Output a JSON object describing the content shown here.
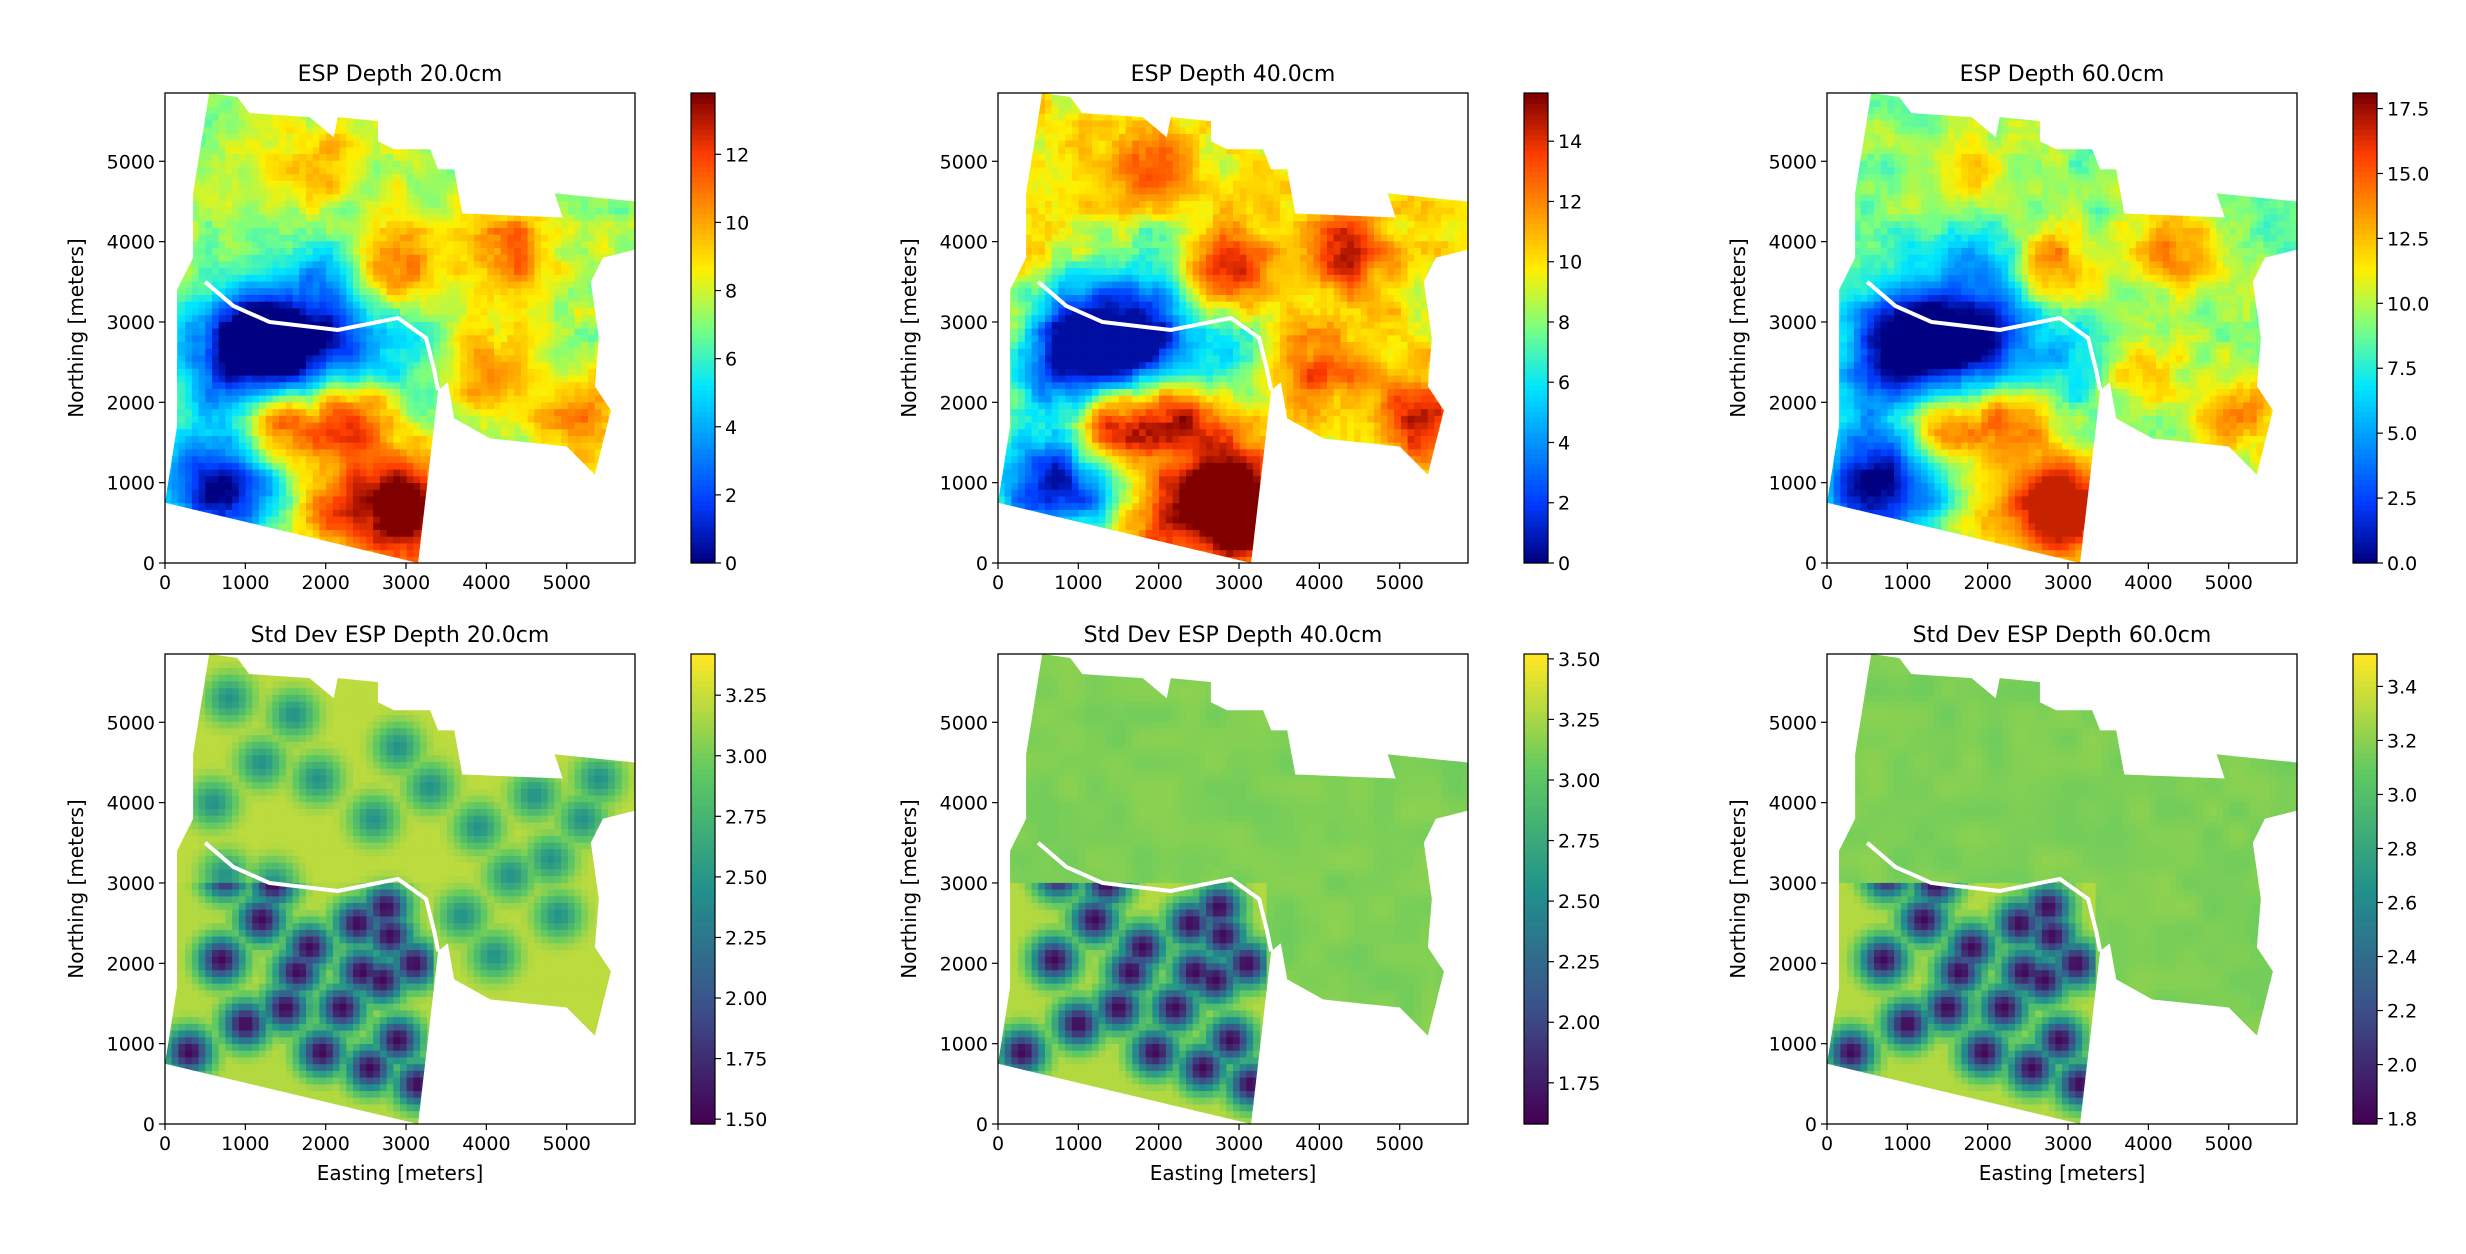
{
  "figure": {
    "layout": "2x3 grid of heatmaps with colorbars",
    "colormaps": {
      "jet": "jet",
      "viridis": "viridis"
    }
  },
  "chart_data": [
    {
      "type": "heatmap",
      "title": "ESP Depth 20.0cm",
      "xlabel": "",
      "ylabel": "Northing [meters]",
      "xlim": [
        0,
        5850
      ],
      "ylim": [
        0,
        5850
      ],
      "xticks": [
        "0",
        "1000",
        "2000",
        "3000",
        "4000",
        "5000"
      ],
      "yticks": [
        "0",
        "1000",
        "2000",
        "3000",
        "4000",
        "5000"
      ],
      "colormap": "jet",
      "colorbar": {
        "min": 0,
        "max": 13.8,
        "ticks": [
          0,
          2,
          4,
          6,
          8,
          10,
          12
        ],
        "ticklabels": [
          "0",
          "2",
          "4",
          "6",
          "8",
          "10",
          "12"
        ]
      },
      "field": "esp"
    },
    {
      "type": "heatmap",
      "title": "ESP Depth 40.0cm",
      "xlabel": "",
      "ylabel": "Northing [meters]",
      "xlim": [
        0,
        5850
      ],
      "ylim": [
        0,
        5850
      ],
      "xticks": [
        "0",
        "1000",
        "2000",
        "3000",
        "4000",
        "5000"
      ],
      "yticks": [
        "0",
        "1000",
        "2000",
        "3000",
        "4000",
        "5000"
      ],
      "colormap": "jet",
      "colorbar": {
        "min": 0,
        "max": 15.6,
        "ticks": [
          0,
          2,
          4,
          6,
          8,
          10,
          12,
          14
        ],
        "ticklabels": [
          "0",
          "2",
          "4",
          "6",
          "8",
          "10",
          "12",
          "14"
        ]
      },
      "field": "esp"
    },
    {
      "type": "heatmap",
      "title": "ESP Depth 60.0cm",
      "xlabel": "",
      "ylabel": "Northing [meters]",
      "xlim": [
        0,
        5850
      ],
      "ylim": [
        0,
        5850
      ],
      "xticks": [
        "0",
        "1000",
        "2000",
        "3000",
        "4000",
        "5000"
      ],
      "yticks": [
        "0",
        "1000",
        "2000",
        "3000",
        "4000",
        "5000"
      ],
      "colormap": "jet",
      "colorbar": {
        "min": 0,
        "max": 18.1,
        "ticks": [
          0,
          2.5,
          5,
          7.5,
          10,
          12.5,
          15,
          17.5
        ],
        "ticklabels": [
          "0.0",
          "2.5",
          "5.0",
          "7.5",
          "10.0",
          "12.5",
          "15.0",
          "17.5"
        ]
      },
      "field": "esp"
    },
    {
      "type": "heatmap",
      "title": "Std Dev ESP Depth 20.0cm",
      "xlabel": "Easting [meters]",
      "ylabel": "Northing [meters]",
      "xlim": [
        0,
        5850
      ],
      "ylim": [
        0,
        5850
      ],
      "xticks": [
        "0",
        "1000",
        "2000",
        "3000",
        "4000",
        "5000"
      ],
      "yticks": [
        "0",
        "1000",
        "2000",
        "3000",
        "4000",
        "5000"
      ],
      "colormap": "viridis",
      "colorbar": {
        "min": 1.48,
        "max": 3.42,
        "ticks": [
          1.5,
          1.75,
          2.0,
          2.25,
          2.5,
          2.75,
          3.0,
          3.25
        ],
        "ticklabels": [
          "1.50",
          "1.75",
          "2.00",
          "2.25",
          "2.50",
          "2.75",
          "3.00",
          "3.25"
        ]
      },
      "field": "std"
    },
    {
      "type": "heatmap",
      "title": "Std Dev ESP Depth 40.0cm",
      "xlabel": "Easting [meters]",
      "ylabel": "Northing [meters]",
      "xlim": [
        0,
        5850
      ],
      "ylim": [
        0,
        5850
      ],
      "xticks": [
        "0",
        "1000",
        "2000",
        "3000",
        "4000",
        "5000"
      ],
      "yticks": [
        "0",
        "1000",
        "2000",
        "3000",
        "4000",
        "5000"
      ],
      "colormap": "viridis",
      "colorbar": {
        "min": 1.58,
        "max": 3.52,
        "ticks": [
          1.75,
          2.0,
          2.25,
          2.5,
          2.75,
          3.0,
          3.25,
          3.5
        ],
        "ticklabels": [
          "1.75",
          "2.00",
          "2.25",
          "2.50",
          "2.75",
          "3.00",
          "3.25",
          "3.50"
        ]
      },
      "field": "std"
    },
    {
      "type": "heatmap",
      "title": "Std Dev ESP Depth 60.0cm",
      "xlabel": "Easting [meters]",
      "ylabel": "Northing [meters]",
      "xlim": [
        0,
        5850
      ],
      "ylim": [
        0,
        5850
      ],
      "xticks": [
        "0",
        "1000",
        "2000",
        "3000",
        "4000",
        "5000"
      ],
      "yticks": [
        "0",
        "1000",
        "2000",
        "3000",
        "4000",
        "5000"
      ],
      "colormap": "viridis",
      "colorbar": {
        "min": 1.78,
        "max": 3.52,
        "ticks": [
          1.8,
          2.0,
          2.2,
          2.4,
          2.6,
          2.8,
          3.0,
          3.2,
          3.4
        ],
        "ticklabels": [
          "1.8",
          "2.0",
          "2.2",
          "2.4",
          "2.6",
          "2.8",
          "3.0",
          "3.2",
          "3.4"
        ]
      },
      "field": "std"
    }
  ]
}
